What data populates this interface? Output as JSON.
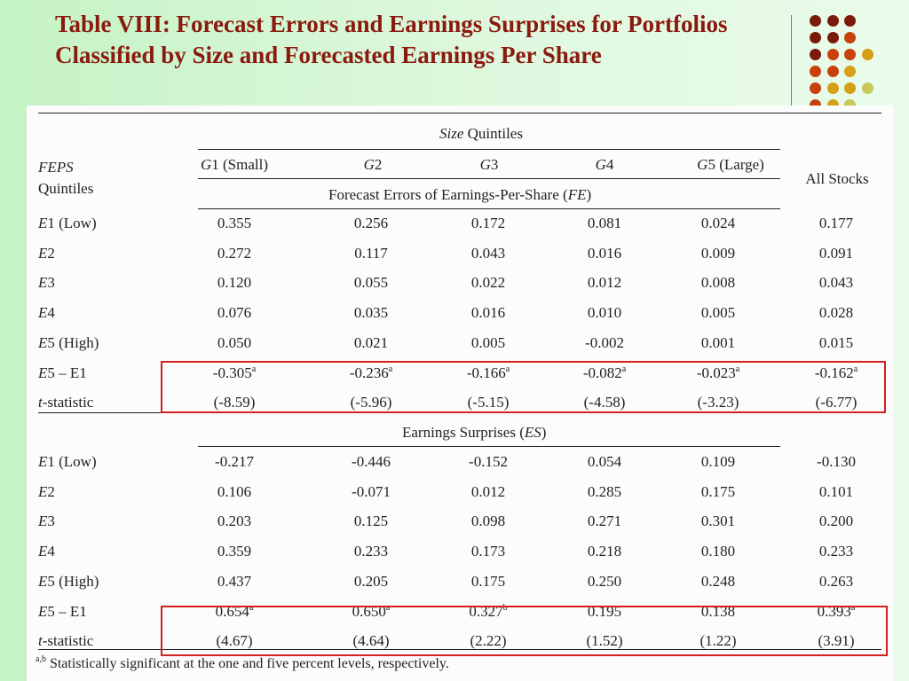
{
  "slide": {
    "title": "Table VIII: Forecast Errors and Earnings Surprises for Portfolios Classified by Size and Forecasted Earnings Per Share"
  },
  "decoration": {
    "dot_colors": [
      "#7a1a0a",
      "#c8400a",
      "#d4a017",
      "#c8c85a"
    ]
  },
  "table": {
    "size_header": {
      "italic": "Size",
      "rest": " Quintiles"
    },
    "feps_label": "FEPS",
    "quintiles_label": "Quintiles",
    "columns": [
      {
        "italic": "G",
        "rest": "1 (Small)"
      },
      {
        "italic": "G",
        "rest": "2"
      },
      {
        "italic": "G",
        "rest": "3"
      },
      {
        "italic": "G",
        "rest": "4"
      },
      {
        "italic": "G",
        "rest": "5 (Large)"
      }
    ],
    "all_stocks": "All Stocks",
    "panels": [
      {
        "header": "Forecast Errors of Earnings-Per-Share (FE)",
        "rows": [
          {
            "label_italic": "E",
            "label_rest": "1 (Low)",
            "values": [
              "0.355",
              "0.256",
              "0.172",
              "0.081",
              "0.024",
              "0.177"
            ]
          },
          {
            "label_italic": "E",
            "label_rest": "2",
            "values": [
              "0.272",
              "0.117",
              "0.043",
              "0.016",
              "0.009",
              "0.091"
            ]
          },
          {
            "label_italic": "E",
            "label_rest": "3",
            "values": [
              "0.120",
              "0.055",
              "0.022",
              "0.012",
              "0.008",
              "0.043"
            ]
          },
          {
            "label_italic": "E",
            "label_rest": "4",
            "values": [
              "0.076",
              "0.035",
              "0.016",
              "0.010",
              "0.005",
              "0.028"
            ]
          },
          {
            "label_italic": "E",
            "label_rest": "5 (High)",
            "values": [
              "0.050",
              "0.021",
              "0.005",
              "-0.002",
              "0.001",
              "0.015"
            ]
          },
          {
            "label_italic": "E",
            "label_rest": "5 – E1",
            "values": [
              "-0.305",
              "-0.236",
              "-0.166",
              "-0.082",
              "-0.023",
              "-0.162"
            ],
            "sups": [
              "a",
              "a",
              "a",
              "a",
              "a",
              "a"
            ]
          },
          {
            "label_italic": "t",
            "label_rest": "-statistic",
            "values": [
              "(-8.59)",
              "(-5.96)",
              "(-5.15)",
              "(-4.58)",
              "(-3.23)",
              "(-6.77)"
            ]
          }
        ]
      },
      {
        "header": "Earnings Surprises (ES)",
        "rows": [
          {
            "label_italic": "E",
            "label_rest": "1 (Low)",
            "values": [
              "-0.217",
              "-0.446",
              "-0.152",
              "0.054",
              "0.109",
              "-0.130"
            ]
          },
          {
            "label_italic": "E",
            "label_rest": "2",
            "values": [
              "0.106",
              "-0.071",
              "0.012",
              "0.285",
              "0.175",
              "0.101"
            ]
          },
          {
            "label_italic": "E",
            "label_rest": "3",
            "values": [
              "0.203",
              "0.125",
              "0.098",
              "0.271",
              "0.301",
              "0.200"
            ]
          },
          {
            "label_italic": "E",
            "label_rest": "4",
            "values": [
              "0.359",
              "0.233",
              "0.173",
              "0.218",
              "0.180",
              "0.233"
            ]
          },
          {
            "label_italic": "E",
            "label_rest": "5 (High)",
            "values": [
              "0.437",
              "0.205",
              "0.175",
              "0.250",
              "0.248",
              "0.263"
            ]
          },
          {
            "label_italic": "E",
            "label_rest": "5 – E1",
            "values": [
              "0.654",
              "0.650",
              "0.327",
              "0.195",
              "0.138",
              "0.393"
            ],
            "sups": [
              "a",
              "a",
              "b",
              "",
              "",
              "a"
            ]
          },
          {
            "label_italic": "t",
            "label_rest": "-statistic",
            "values": [
              "(4.67)",
              "(4.64)",
              "(2.22)",
              "(1.52)",
              "(1.22)",
              "(3.91)"
            ]
          }
        ]
      }
    ],
    "footnote_sup": "a,b",
    "footnote": " Statistically significant at the one and five percent levels, respectively."
  },
  "highlight_color": "#d42020"
}
